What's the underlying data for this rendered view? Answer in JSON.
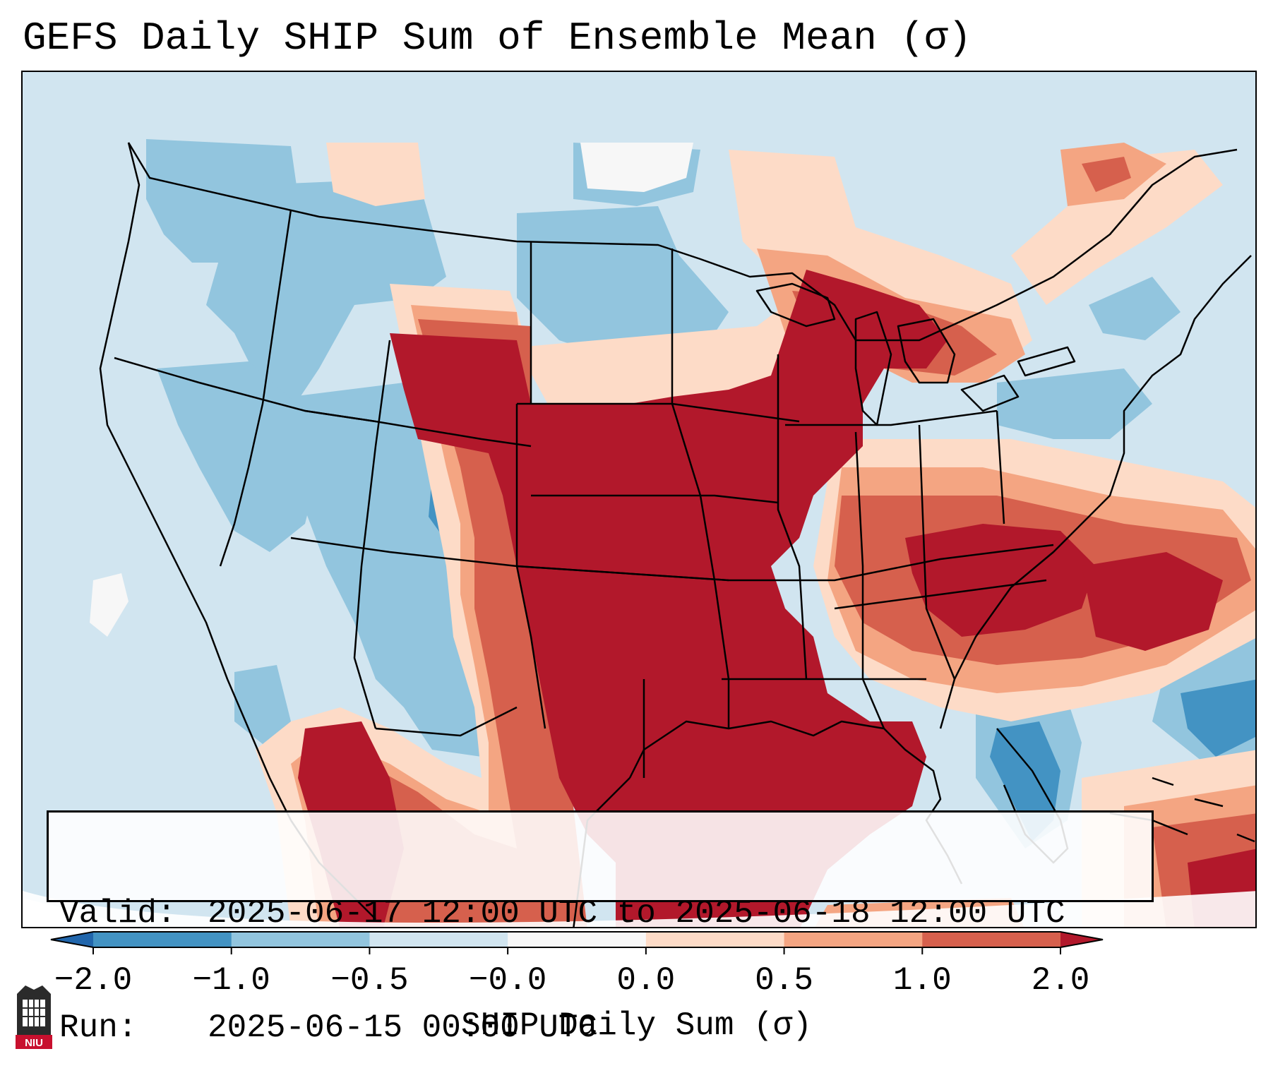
{
  "title": "GEFS Daily SHIP Sum of Ensemble Mean (σ)",
  "info": {
    "valid_label": "Valid:",
    "valid_value": "2025-06-17 12:00 UTC to 2025-06-18 12:00 UTC",
    "run_label": "Run:",
    "run_value": "2025-06-15 00:00 UTC"
  },
  "colorbar": {
    "title": "SHIP Daily Sum (σ)",
    "ticks": [
      "−2.0",
      "−1.0",
      "−0.5",
      "−0.0",
      "0.0",
      "0.5",
      "1.0",
      "2.0"
    ],
    "colors": [
      "#4393c3",
      "#92c5de",
      "#d1e5f0",
      "#f7f7f7",
      "#fddbc7",
      "#f4a582",
      "#d6604d"
    ],
    "under_color": "#2166ac",
    "over_color": "#b2182b"
  },
  "logo": {
    "text": "NIU",
    "name": "niu-logo"
  },
  "colors": {
    "strong_negative": "#4393c3",
    "negative": "#92c5de",
    "weak_negative": "#d1e5f0",
    "near_zero": "#f7f7f7",
    "weak_positive": "#fddbc7",
    "positive": "#f4a582",
    "strong_positive": "#d6604d",
    "extreme_positive": "#b2182b"
  }
}
